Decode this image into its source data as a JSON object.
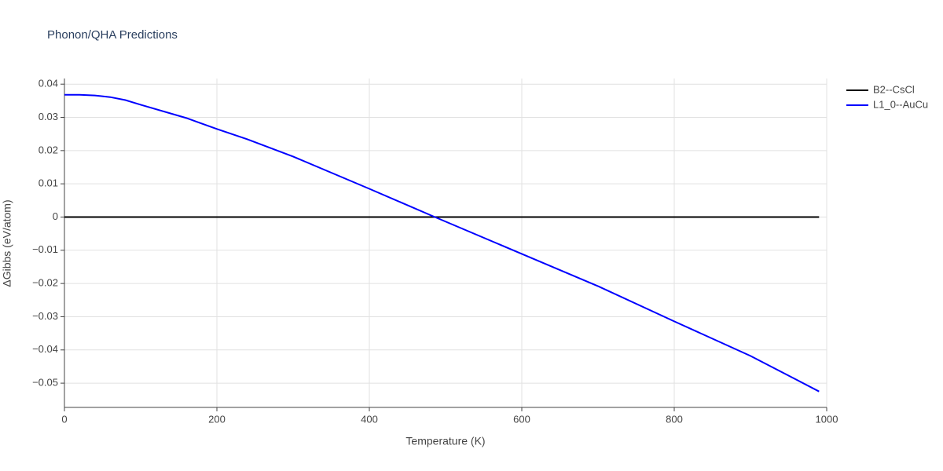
{
  "chart_data": {
    "type": "line",
    "title": "Phonon/QHA Predictions",
    "x_label": "Temperature (K)",
    "y_label": "ΔGibbs (eV/atom)",
    "xlim": [
      0,
      1000
    ],
    "xticks": [
      0,
      200,
      400,
      600,
      800,
      1000
    ],
    "ylim": [
      -0.0573,
      0.0417
    ],
    "yticks": [
      {
        "value": -0.05,
        "label": "−0.05"
      },
      {
        "value": -0.04,
        "label": "−0.04"
      },
      {
        "value": -0.03,
        "label": "−0.03"
      },
      {
        "value": -0.02,
        "label": "−0.02"
      },
      {
        "value": -0.01,
        "label": "−0.01"
      },
      0,
      0.01,
      0.02,
      0.03,
      0.04
    ],
    "grid": true,
    "legend": "top-right",
    "series": [
      {
        "name": "B2--CsCl",
        "color": "#000000",
        "x": [
          0,
          990
        ],
        "values": [
          0,
          0
        ]
      },
      {
        "name": "L1_0--AuCu",
        "color": "#0000ff",
        "x": [
          0,
          20,
          40,
          60,
          80,
          100,
          160,
          200,
          240,
          300,
          400,
          486,
          600,
          700,
          800,
          900,
          990
        ],
        "values": [
          0.0368,
          0.0368,
          0.0366,
          0.0361,
          0.0352,
          0.0338,
          0.0298,
          0.0265,
          0.0234,
          0.0182,
          0.0085,
          0,
          -0.0111,
          -0.0208,
          -0.0314,
          -0.0418,
          -0.0525
        ]
      }
    ]
  }
}
